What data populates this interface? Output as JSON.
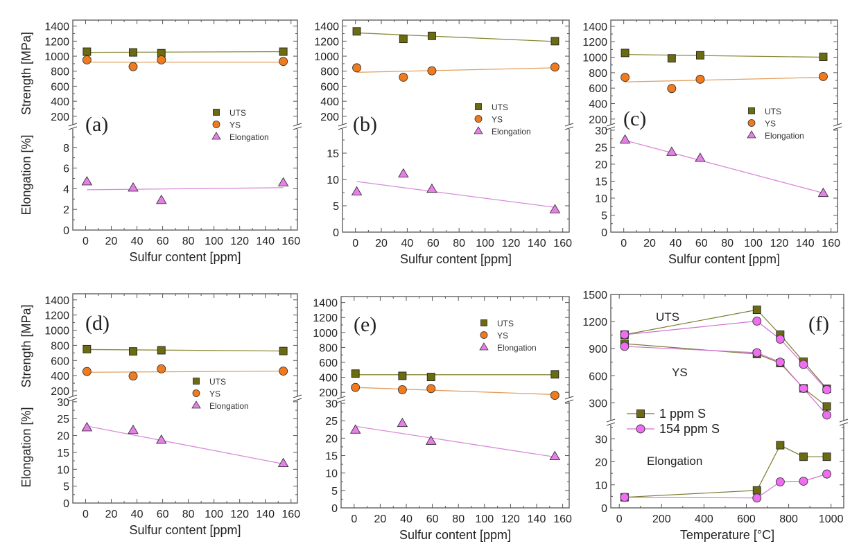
{
  "colors": {
    "uts_fill": "#6b6b12",
    "uts_line": "#8a8a3a",
    "ys_fill": "#f07a1e",
    "ys_line": "#e0a060",
    "el_fill": "#e77fe8",
    "el_line": "#d98ad9",
    "ppm1_fill": "#6b6b12",
    "ppm1_line": "#7a7a30",
    "ppm154_fill": "#f06cf0",
    "ppm154_line": "#d070d0",
    "axis": "#555555"
  },
  "chart_data": [
    {
      "id": "a",
      "type": "scatter",
      "panel_label": "(a)",
      "xlabel": "Sulfur content [ppm]",
      "ylabel_top": "Strength [MPa]",
      "ylabel_bottom": "Elongation [%]",
      "xlim": [
        -10,
        165
      ],
      "x_ticks": [
        0,
        20,
        40,
        60,
        80,
        100,
        120,
        140,
        160
      ],
      "strength_ylim": [
        60,
        1480
      ],
      "strength_ticks": [
        200,
        400,
        600,
        800,
        1000,
        1200,
        1400
      ],
      "elong_ylim": [
        0,
        10
      ],
      "elong_ticks": [
        0,
        2,
        4,
        6,
        8
      ],
      "legend": [
        "UTS",
        "YS",
        "Elongation"
      ],
      "legend_position": "center-right",
      "x": [
        1,
        37,
        59,
        154
      ],
      "series": [
        {
          "name": "UTS",
          "axis": "strength",
          "values": [
            1060,
            1050,
            1040,
            1060
          ],
          "fit": [
            1050,
            1060
          ]
        },
        {
          "name": "YS",
          "axis": "strength",
          "values": [
            950,
            860,
            950,
            930
          ],
          "fit": [
            920,
            920
          ]
        },
        {
          "name": "Elongation",
          "axis": "elongation",
          "values": [
            4.7,
            4.1,
            2.9,
            4.6
          ],
          "fit": [
            3.9,
            4.1
          ]
        }
      ]
    },
    {
      "id": "b",
      "type": "scatter",
      "panel_label": "(b)",
      "xlabel": "Sulfur content [ppm]",
      "ylabel_top": "",
      "ylabel_bottom": "",
      "xlim": [
        -10,
        165
      ],
      "x_ticks": [
        0,
        20,
        40,
        60,
        80,
        100,
        120,
        140,
        160
      ],
      "strength_ylim": [
        60,
        1480
      ],
      "strength_ticks": [
        200,
        400,
        600,
        800,
        1000,
        1200,
        1400
      ],
      "elong_ylim": [
        0,
        20
      ],
      "elong_ticks": [
        0,
        5,
        10,
        15
      ],
      "legend": [
        "UTS",
        "YS",
        "Elongation"
      ],
      "legend_position": "center-right",
      "x": [
        1,
        37,
        59,
        154
      ],
      "series": [
        {
          "name": "UTS",
          "axis": "strength",
          "values": [
            1330,
            1230,
            1270,
            1200
          ],
          "fit": [
            1310,
            1195
          ]
        },
        {
          "name": "YS",
          "axis": "strength",
          "values": [
            845,
            720,
            805,
            855
          ],
          "fit": [
            785,
            845
          ]
        },
        {
          "name": "Elongation",
          "axis": "elongation",
          "values": [
            7.7,
            11.1,
            8.2,
            4.3
          ],
          "fit": [
            9.6,
            4.7
          ]
        }
      ]
    },
    {
      "id": "c",
      "type": "scatter",
      "panel_label": "(c)",
      "xlabel": "Sulfur content [ppm]",
      "ylabel_top": "",
      "ylabel_bottom": "",
      "xlim": [
        -10,
        165
      ],
      "x_ticks": [
        0,
        20,
        40,
        60,
        80,
        100,
        120,
        140,
        160
      ],
      "strength_ylim": [
        100,
        1480
      ],
      "strength_ticks": [
        200,
        400,
        600,
        800,
        1000,
        1200,
        1400
      ],
      "elong_ylim": [
        0,
        31
      ],
      "elong_ticks": [
        0,
        5,
        10,
        15,
        20,
        25,
        30
      ],
      "legend": [
        "UTS",
        "YS",
        "Elongation"
      ],
      "legend_position": "center-right",
      "x": [
        1,
        37,
        59,
        154
      ],
      "series": [
        {
          "name": "UTS",
          "axis": "strength",
          "values": [
            1055,
            985,
            1025,
            1005
          ],
          "fit": [
            1035,
            1000
          ]
        },
        {
          "name": "YS",
          "axis": "strength",
          "values": [
            740,
            595,
            715,
            750
          ],
          "fit": [
            680,
            740
          ]
        },
        {
          "name": "Elongation",
          "axis": "elongation",
          "values": [
            27.2,
            23.6,
            21.8,
            11.5
          ],
          "fit": [
            27.0,
            11.5
          ]
        }
      ]
    },
    {
      "id": "d",
      "type": "scatter",
      "panel_label": "(d)",
      "xlabel": "Sulfur content [ppm]",
      "ylabel_top": "Strength [MPa]",
      "ylabel_bottom": "Elongation [%]",
      "xlim": [
        -10,
        165
      ],
      "x_ticks": [
        0,
        20,
        40,
        60,
        80,
        100,
        120,
        140,
        160
      ],
      "strength_ylim": [
        100,
        1480
      ],
      "strength_ticks": [
        200,
        400,
        600,
        800,
        1000,
        1200,
        1400
      ],
      "elong_ylim": [
        0,
        31
      ],
      "elong_ticks": [
        0,
        5,
        10,
        15,
        20,
        25,
        30
      ],
      "legend": [
        "UTS",
        "YS",
        "Elongation"
      ],
      "legend_position": "center",
      "x": [
        1,
        37,
        59,
        154
      ],
      "series": [
        {
          "name": "UTS",
          "axis": "strength",
          "values": [
            750,
            720,
            735,
            725
          ],
          "fit": [
            745,
            725
          ]
        },
        {
          "name": "YS",
          "axis": "strength",
          "values": [
            455,
            395,
            490,
            460
          ],
          "fit": [
            445,
            460
          ]
        },
        {
          "name": "Elongation",
          "axis": "elongation",
          "values": [
            22.4,
            21.6,
            18.7,
            11.8
          ],
          "fit": [
            22.8,
            11.6
          ]
        }
      ]
    },
    {
      "id": "e",
      "type": "scatter",
      "panel_label": "(e)",
      "xlabel": "Sulfur content [ppm]",
      "ylabel_top": "",
      "ylabel_bottom": "",
      "xlim": [
        -10,
        165
      ],
      "x_ticks": [
        0,
        20,
        40,
        60,
        80,
        100,
        120,
        140,
        160
      ],
      "strength_ylim": [
        100,
        1480
      ],
      "strength_ticks": [
        200,
        400,
        600,
        800,
        1000,
        1200,
        1400
      ],
      "elong_ylim": [
        0,
        31
      ],
      "elong_ticks": [
        0,
        5,
        10,
        15,
        20,
        25,
        30
      ],
      "legend": [
        "UTS",
        "YS",
        "Elongation"
      ],
      "legend_position": "top-right",
      "x": [
        1,
        37,
        59,
        154
      ],
      "series": [
        {
          "name": "UTS",
          "axis": "strength",
          "values": [
            450,
            420,
            405,
            440
          ],
          "fit": [
            435,
            435
          ]
        },
        {
          "name": "YS",
          "axis": "strength",
          "values": [
            265,
            235,
            250,
            160
          ],
          "fit": [
            265,
            170
          ]
        },
        {
          "name": "Elongation",
          "axis": "elongation",
          "values": [
            22.4,
            24.3,
            19.2,
            14.8
          ],
          "fit": [
            23.4,
            14.6
          ]
        }
      ]
    },
    {
      "id": "f",
      "type": "line",
      "panel_label": "(f)",
      "xlabel": "Temperature [°C]",
      "xlim": [
        -40,
        1060
      ],
      "x_ticks": [
        0,
        200,
        400,
        600,
        800,
        1000
      ],
      "strength_ylim": [
        80,
        1500
      ],
      "strength_ticks": [
        300,
        600,
        900,
        1200,
        1500
      ],
      "elong_ylim": [
        0,
        37
      ],
      "elong_ticks": [
        0,
        10,
        20,
        30
      ],
      "annotations": [
        "UTS",
        "YS",
        "Elongation"
      ],
      "legend": [
        "1 ppm S",
        "154 ppm S"
      ],
      "legend_position": "center-left",
      "x": [
        25,
        650,
        760,
        870,
        980
      ],
      "series": [
        {
          "name": "1 ppm S",
          "group": "UTS",
          "axis": "strength",
          "values": [
            1055,
            1330,
            1055,
            755,
            455
          ]
        },
        {
          "name": "1 ppm S",
          "group": "YS",
          "axis": "strength",
          "values": [
            955,
            840,
            740,
            460,
            260
          ]
        },
        {
          "name": "1 ppm S",
          "group": "Elongation",
          "axis": "elongation",
          "values": [
            4.6,
            7.6,
            27.2,
            22.2,
            22.2
          ]
        },
        {
          "name": "154 ppm S",
          "group": "UTS",
          "axis": "strength",
          "values": [
            1055,
            1205,
            1005,
            725,
            445
          ]
        },
        {
          "name": "154 ppm S",
          "group": "YS",
          "axis": "strength",
          "values": [
            925,
            855,
            750,
            460,
            165
          ]
        },
        {
          "name": "154 ppm S",
          "group": "Elongation",
          "axis": "elongation",
          "values": [
            4.6,
            4.3,
            11.3,
            11.6,
            14.7
          ]
        }
      ]
    }
  ]
}
